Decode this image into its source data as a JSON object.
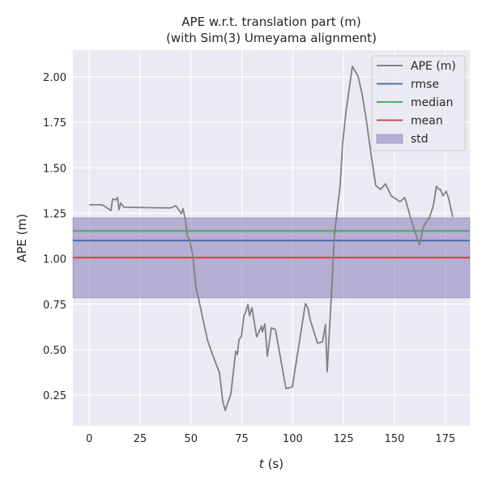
{
  "chart_data": {
    "type": "line",
    "title": "APE w.r.t. translation part (m)",
    "subtitle": "(with Sim(3) Umeyama alignment)",
    "xlabel_var": "t",
    "xlabel_unit": " (s)",
    "ylabel": "APE (m)",
    "xlim": [
      -8,
      187
    ],
    "ylim": [
      0.081,
      2.147
    ],
    "xticks": [
      0,
      25,
      50,
      75,
      100,
      125,
      150,
      175
    ],
    "yticks": [
      0.25,
      0.5,
      0.75,
      1.0,
      1.25,
      1.5,
      1.75,
      2.0
    ],
    "ytick_labels": [
      "0.25",
      "0.50",
      "0.75",
      "1.00",
      "1.25",
      "1.50",
      "1.75",
      "2.00"
    ],
    "grid": true,
    "legend_position": "top-right",
    "colors": {
      "background": "#eaeaf2",
      "ape": "#808080",
      "rmse": "#4c72b0",
      "median": "#55a868",
      "mean": "#c44e52",
      "std": "#8172b3"
    },
    "series": [
      {
        "name": "APE (m)",
        "x": [
          0,
          4.8,
          6.8,
          8.8,
          10.7,
          11.5,
          13.1,
          13.9,
          14.7,
          15.5,
          17.1,
          39.8,
          42.5,
          45.3,
          46.1,
          47.3,
          48.1,
          49.3,
          50.9,
          52.5,
          54.5,
          58.1,
          60.5,
          62.4,
          64.0,
          65.6,
          66.8,
          69.6,
          72.0,
          72.8,
          73.6,
          74.8,
          76.0,
          76.8,
          78.0,
          78.8,
          80.0,
          80.7,
          82.3,
          84.7,
          85.1,
          86.3,
          87.5,
          89.5,
          91.5,
          96.7,
          99.8,
          106.2,
          107.4,
          108.6,
          112.2,
          114.6,
          116.1,
          116.9,
          118.9,
          120.5,
          123.3,
          124.5,
          126.1,
          129.3,
          132.1,
          134.0,
          136.0,
          138.4,
          140.8,
          143.2,
          145.6,
          148.4,
          152.7,
          155.1,
          157.9,
          159.9,
          162.3,
          164.3,
          167.1,
          169.1,
          170.6,
          171.8,
          172.6,
          173.8,
          175.4,
          176.6,
          178.6
        ],
        "y": [
          1.297,
          1.297,
          1.295,
          1.279,
          1.265,
          1.328,
          1.324,
          1.337,
          1.27,
          1.306,
          1.283,
          1.279,
          1.292,
          1.248,
          1.275,
          1.212,
          1.127,
          1.105,
          1.016,
          0.842,
          0.74,
          0.553,
          0.477,
          0.42,
          0.375,
          0.219,
          0.166,
          0.255,
          0.491,
          0.473,
          0.553,
          0.575,
          0.687,
          0.705,
          0.749,
          0.687,
          0.731,
          0.678,
          0.571,
          0.629,
          0.598,
          0.642,
          0.464,
          0.62,
          0.611,
          0.286,
          0.295,
          0.753,
          0.731,
          0.664,
          0.535,
          0.544,
          0.638,
          0.379,
          0.78,
          1.136,
          1.403,
          1.626,
          1.804,
          2.058,
          2.004,
          1.911,
          1.777,
          1.58,
          1.403,
          1.381,
          1.412,
          1.346,
          1.314,
          1.337,
          1.225,
          1.154,
          1.078,
          1.18,
          1.225,
          1.292,
          1.399,
          1.381,
          1.381,
          1.346,
          1.372,
          1.332,
          1.23
        ]
      },
      {
        "name": "rmse",
        "value": 1.1
      },
      {
        "name": "median",
        "value": 1.153
      },
      {
        "name": "mean",
        "value": 1.006
      },
      {
        "name": "std",
        "range": [
          0.785,
          1.225
        ]
      }
    ]
  }
}
